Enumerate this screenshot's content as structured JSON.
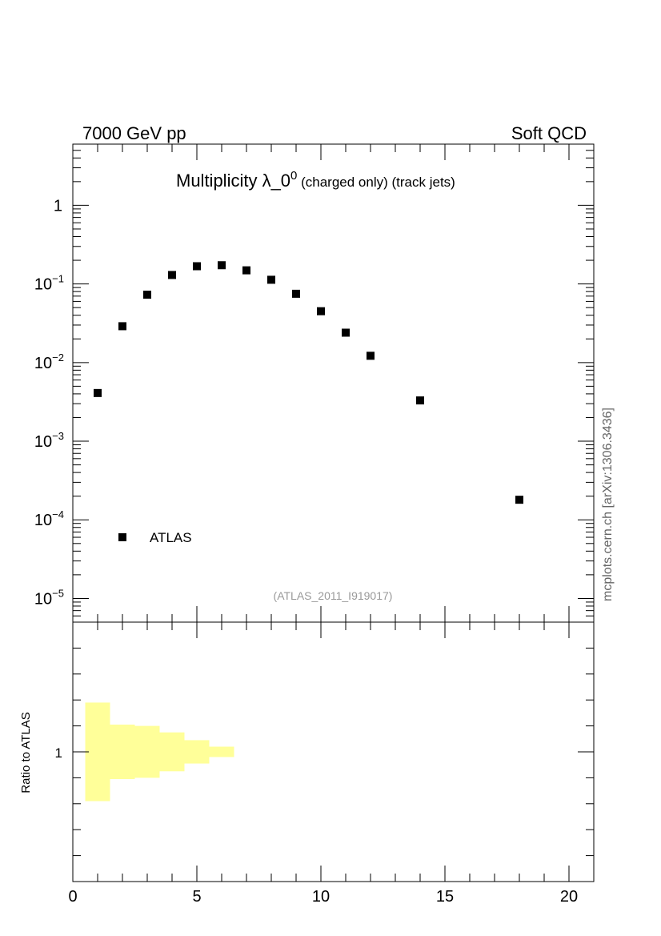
{
  "header": {
    "left": "7000 GeV pp",
    "right": "Soft QCD"
  },
  "side_label": "mcplots.cern.ch [arXiv:1306.3436]",
  "chart_data": [
    {
      "type": "scatter",
      "title_main": "Multiplicity λ_0",
      "title_sup": "0",
      "title_small": " (charged only) (track jets)",
      "annotation": "(ATLAS_2011_I919017)",
      "yscale": "log",
      "xlim": [
        0,
        21
      ],
      "ylim": [
        5e-06,
        6
      ],
      "y_tick_labels": [
        {
          "value": 1,
          "base": "1",
          "exp": ""
        },
        {
          "value": 0.1,
          "base": "10",
          "exp": "−1"
        },
        {
          "value": 0.01,
          "base": "10",
          "exp": "−2"
        },
        {
          "value": 0.001,
          "base": "10",
          "exp": "−3"
        },
        {
          "value": 0.0001,
          "base": "10",
          "exp": "−4"
        },
        {
          "value": 1e-05,
          "base": "10",
          "exp": "−5"
        }
      ],
      "legend": {
        "placement": "bottom-left",
        "entries": [
          "ATLAS"
        ]
      },
      "series": [
        {
          "name": "ATLAS",
          "color": "#000000",
          "x": [
            1,
            2,
            3,
            4,
            5,
            6,
            7,
            8,
            9,
            10,
            11,
            12,
            14,
            18
          ],
          "y": [
            0.0041,
            0.029,
            0.073,
            0.13,
            0.168,
            0.173,
            0.149,
            0.113,
            0.075,
            0.045,
            0.024,
            0.0122,
            0.0033,
            0.00018
          ]
        }
      ]
    },
    {
      "type": "area",
      "ylabel": "Ratio to ATLAS",
      "xlim": [
        0,
        21
      ],
      "ylim": [
        0.5,
        1.5
      ],
      "x_tick_labels": [
        "0",
        "5",
        "10",
        "15",
        "20"
      ],
      "y_tick_labels": [
        "1"
      ],
      "band_color": "#ffff99",
      "band": [
        {
          "x0": 0.5,
          "x1": 1.5,
          "lo": 0.81,
          "hi": 1.19
        },
        {
          "x0": 1.5,
          "x1": 2.5,
          "lo": 0.895,
          "hi": 1.105
        },
        {
          "x0": 2.5,
          "x1": 3.5,
          "lo": 0.9,
          "hi": 1.1
        },
        {
          "x0": 3.5,
          "x1": 4.5,
          "lo": 0.925,
          "hi": 1.075
        },
        {
          "x0": 4.5,
          "x1": 5.5,
          "lo": 0.955,
          "hi": 1.045
        },
        {
          "x0": 5.5,
          "x1": 6.5,
          "lo": 0.98,
          "hi": 1.02
        }
      ]
    }
  ]
}
